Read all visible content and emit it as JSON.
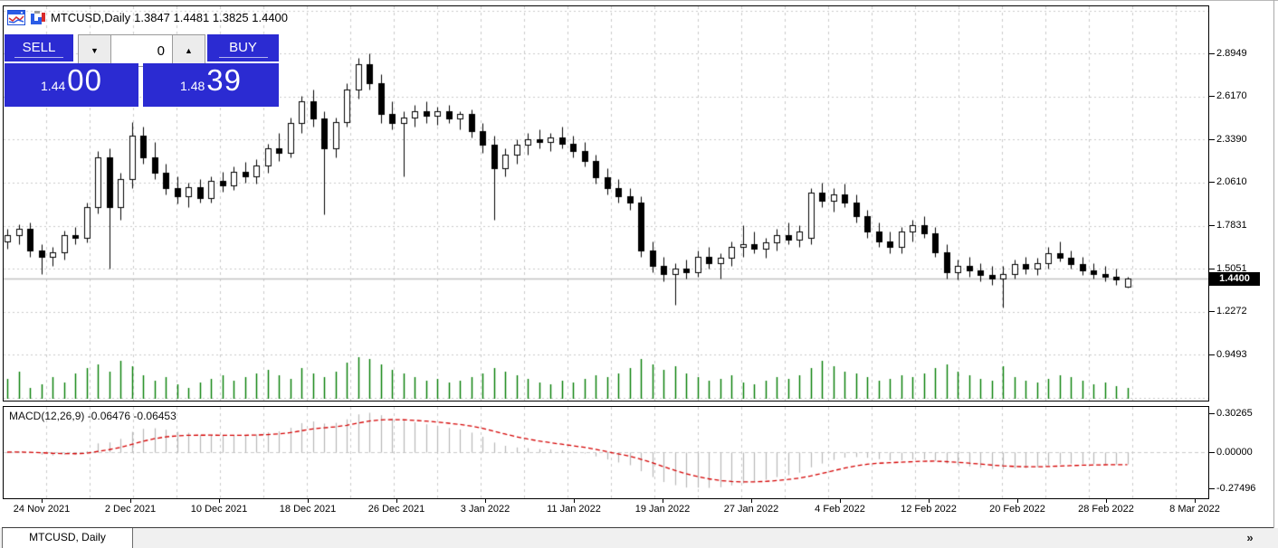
{
  "window": {
    "title_symbol": "MTCUSD,Daily",
    "title_ohlc": "1.3847 1.4481 1.3825 1.4400"
  },
  "trade_panel": {
    "sell_label": "SELL",
    "buy_label": "BUY",
    "lot_value": "0",
    "sell_price_small": "1.44",
    "sell_price_big": "00",
    "buy_price_small": "1.48",
    "buy_price_big": "39",
    "panel_color": "#2b2bd2"
  },
  "indicator": {
    "label": "MACD(12,26,9) -0.06476 -0.06453",
    "name": "MACD",
    "params": "12,26,9",
    "value_main": "-0.06476",
    "value_signal": "-0.06453"
  },
  "bottom_bar": {
    "tab_label": "MTCUSD, Daily",
    "overflow_icon": "»"
  },
  "chart_data": {
    "type": "candlestick",
    "symbol": "MTCUSD",
    "timeframe": "Daily",
    "price_axis_labels": [
      "2.8949",
      "2.6170",
      "2.3390",
      "2.0610",
      "1.7831",
      "1.5051",
      "1.2272",
      "0.9493"
    ],
    "current_price": "1.4400",
    "macd_axis_labels": [
      "0.30265",
      "0.00000",
      "-0.27496"
    ],
    "date_labels": [
      "24 Nov 2021",
      "2 Dec 2021",
      "10 Dec 2021",
      "18 Dec 2021",
      "26 Dec 2021",
      "3 Jan 2022",
      "11 Jan 2022",
      "19 Jan 2022",
      "27 Jan 2022",
      "4 Feb 2022",
      "12 Feb 2022",
      "20 Feb 2022",
      "28 Feb 2022",
      "8 Mar 2022"
    ],
    "colors": {
      "grid": "#cacaca",
      "bull": "#ffffff",
      "bear": "#000000",
      "outline": "#000000",
      "volume": "#007c00",
      "macd_hist": "#b8b8b8",
      "macd_signal": "#d40000",
      "price_line": "#c0c0c0"
    },
    "candles": [
      [
        1.68,
        1.76,
        1.63,
        1.72
      ],
      [
        1.72,
        1.79,
        1.66,
        1.76
      ],
      [
        1.76,
        1.8,
        1.58,
        1.62
      ],
      [
        1.62,
        1.66,
        1.47,
        1.58
      ],
      [
        1.58,
        1.64,
        1.52,
        1.61
      ],
      [
        1.61,
        1.75,
        1.56,
        1.72
      ],
      [
        1.72,
        1.77,
        1.66,
        1.7
      ],
      [
        1.7,
        1.93,
        1.67,
        1.9
      ],
      [
        1.9,
        2.26,
        1.86,
        2.22
      ],
      [
        2.22,
        2.28,
        1.5,
        1.9
      ],
      [
        1.9,
        2.12,
        1.82,
        2.08
      ],
      [
        2.08,
        2.45,
        2.02,
        2.36
      ],
      [
        2.36,
        2.42,
        2.18,
        2.22
      ],
      [
        2.22,
        2.32,
        2.08,
        2.12
      ],
      [
        2.12,
        2.18,
        1.98,
        2.02
      ],
      [
        2.02,
        2.1,
        1.92,
        1.97
      ],
      [
        1.97,
        2.06,
        1.9,
        2.03
      ],
      [
        2.03,
        2.08,
        1.93,
        1.96
      ],
      [
        1.96,
        2.1,
        1.93,
        2.07
      ],
      [
        2.07,
        2.13,
        2.0,
        2.04
      ],
      [
        2.04,
        2.16,
        2.01,
        2.13
      ],
      [
        2.13,
        2.19,
        2.06,
        2.1
      ],
      [
        2.1,
        2.21,
        2.05,
        2.17
      ],
      [
        2.17,
        2.31,
        2.12,
        2.28
      ],
      [
        2.28,
        2.38,
        2.2,
        2.25
      ],
      [
        2.25,
        2.48,
        2.22,
        2.44
      ],
      [
        2.44,
        2.62,
        2.38,
        2.58
      ],
      [
        2.58,
        2.66,
        2.42,
        2.47
      ],
      [
        2.47,
        2.52,
        1.85,
        2.28
      ],
      [
        2.28,
        2.48,
        2.22,
        2.45
      ],
      [
        2.45,
        2.7,
        2.42,
        2.66
      ],
      [
        2.66,
        2.86,
        2.6,
        2.82
      ],
      [
        2.82,
        2.8949,
        2.66,
        2.7
      ],
      [
        2.7,
        2.76,
        2.44,
        2.5
      ],
      [
        2.5,
        2.58,
        2.4,
        2.44
      ],
      [
        2.44,
        2.52,
        2.1,
        2.48
      ],
      [
        2.48,
        2.56,
        2.42,
        2.52
      ],
      [
        2.52,
        2.58,
        2.44,
        2.49
      ],
      [
        2.49,
        2.55,
        2.43,
        2.52
      ],
      [
        2.52,
        2.56,
        2.44,
        2.47
      ],
      [
        2.47,
        2.52,
        2.4,
        2.5
      ],
      [
        2.5,
        2.53,
        2.35,
        2.39
      ],
      [
        2.39,
        2.44,
        2.25,
        2.3
      ],
      [
        2.3,
        2.36,
        1.82,
        2.15
      ],
      [
        2.15,
        2.28,
        2.1,
        2.24
      ],
      [
        2.24,
        2.34,
        2.18,
        2.3
      ],
      [
        2.3,
        2.38,
        2.24,
        2.34
      ],
      [
        2.34,
        2.4,
        2.28,
        2.32
      ],
      [
        2.32,
        2.38,
        2.26,
        2.35
      ],
      [
        2.35,
        2.42,
        2.28,
        2.31
      ],
      [
        2.31,
        2.36,
        2.22,
        2.26
      ],
      [
        2.26,
        2.32,
        2.16,
        2.2
      ],
      [
        2.2,
        2.24,
        2.05,
        2.09
      ],
      [
        2.09,
        2.15,
        1.98,
        2.02
      ],
      [
        2.02,
        2.08,
        1.93,
        1.97
      ],
      [
        1.97,
        2.02,
        1.88,
        1.93
      ],
      [
        1.93,
        1.97,
        1.58,
        1.62
      ],
      [
        1.62,
        1.68,
        1.48,
        1.52
      ],
      [
        1.52,
        1.58,
        1.42,
        1.47
      ],
      [
        1.47,
        1.54,
        1.27,
        1.5
      ],
      [
        1.5,
        1.56,
        1.44,
        1.48
      ],
      [
        1.48,
        1.62,
        1.45,
        1.58
      ],
      [
        1.58,
        1.64,
        1.5,
        1.54
      ],
      [
        1.54,
        1.6,
        1.44,
        1.57
      ],
      [
        1.57,
        1.68,
        1.52,
        1.64
      ],
      [
        1.64,
        1.78,
        1.58,
        1.66
      ],
      [
        1.66,
        1.74,
        1.6,
        1.63
      ],
      [
        1.63,
        1.7,
        1.57,
        1.67
      ],
      [
        1.67,
        1.76,
        1.62,
        1.72
      ],
      [
        1.72,
        1.8,
        1.66,
        1.69
      ],
      [
        1.69,
        1.78,
        1.64,
        1.74
      ],
      [
        1.7,
        2.02,
        1.66,
        1.99
      ],
      [
        1.99,
        2.06,
        1.9,
        1.94
      ],
      [
        1.94,
        2.02,
        1.87,
        1.98
      ],
      [
        1.98,
        2.05,
        1.9,
        1.93
      ],
      [
        1.93,
        1.98,
        1.8,
        1.84
      ],
      [
        1.84,
        1.88,
        1.7,
        1.74
      ],
      [
        1.74,
        1.8,
        1.64,
        1.68
      ],
      [
        1.68,
        1.74,
        1.6,
        1.64
      ],
      [
        1.64,
        1.77,
        1.6,
        1.74
      ],
      [
        1.74,
        1.82,
        1.68,
        1.78
      ],
      [
        1.78,
        1.84,
        1.7,
        1.73
      ],
      [
        1.73,
        1.77,
        1.58,
        1.61
      ],
      [
        1.61,
        1.66,
        1.44,
        1.48
      ],
      [
        1.48,
        1.56,
        1.43,
        1.52
      ],
      [
        1.52,
        1.58,
        1.45,
        1.49
      ],
      [
        1.49,
        1.54,
        1.42,
        1.46
      ],
      [
        1.46,
        1.52,
        1.4,
        1.44
      ],
      [
        1.44,
        1.52,
        1.25,
        1.47
      ],
      [
        1.47,
        1.56,
        1.44,
        1.53
      ],
      [
        1.53,
        1.58,
        1.47,
        1.5
      ],
      [
        1.5,
        1.57,
        1.46,
        1.54
      ],
      [
        1.54,
        1.64,
        1.5,
        1.6
      ],
      [
        1.6,
        1.68,
        1.55,
        1.57
      ],
      [
        1.57,
        1.62,
        1.5,
        1.53
      ],
      [
        1.53,
        1.58,
        1.46,
        1.49
      ],
      [
        1.49,
        1.54,
        1.44,
        1.47
      ],
      [
        1.47,
        1.52,
        1.42,
        1.45
      ],
      [
        1.45,
        1.5,
        1.4,
        1.43
      ],
      [
        1.3847,
        1.4481,
        1.3825,
        1.44
      ]
    ],
    "volume": [
      22,
      30,
      12,
      16,
      24,
      18,
      28,
      34,
      38,
      30,
      42,
      36,
      26,
      20,
      24,
      16,
      12,
      18,
      22,
      26,
      20,
      24,
      28,
      32,
      26,
      22,
      34,
      28,
      24,
      30,
      40,
      46,
      44,
      38,
      32,
      28,
      24,
      20,
      22,
      18,
      20,
      24,
      28,
      34,
      30,
      26,
      22,
      18,
      16,
      20,
      18,
      22,
      26,
      24,
      28,
      34,
      44,
      38,
      32,
      36,
      28,
      24,
      20,
      22,
      26,
      18,
      16,
      20,
      24,
      22,
      26,
      34,
      42,
      36,
      30,
      28,
      24,
      20,
      22,
      26,
      24,
      28,
      34,
      38,
      30,
      26,
      22,
      20,
      36,
      24,
      20,
      18,
      22,
      26,
      24,
      20,
      16,
      18,
      14,
      12
    ]
  }
}
